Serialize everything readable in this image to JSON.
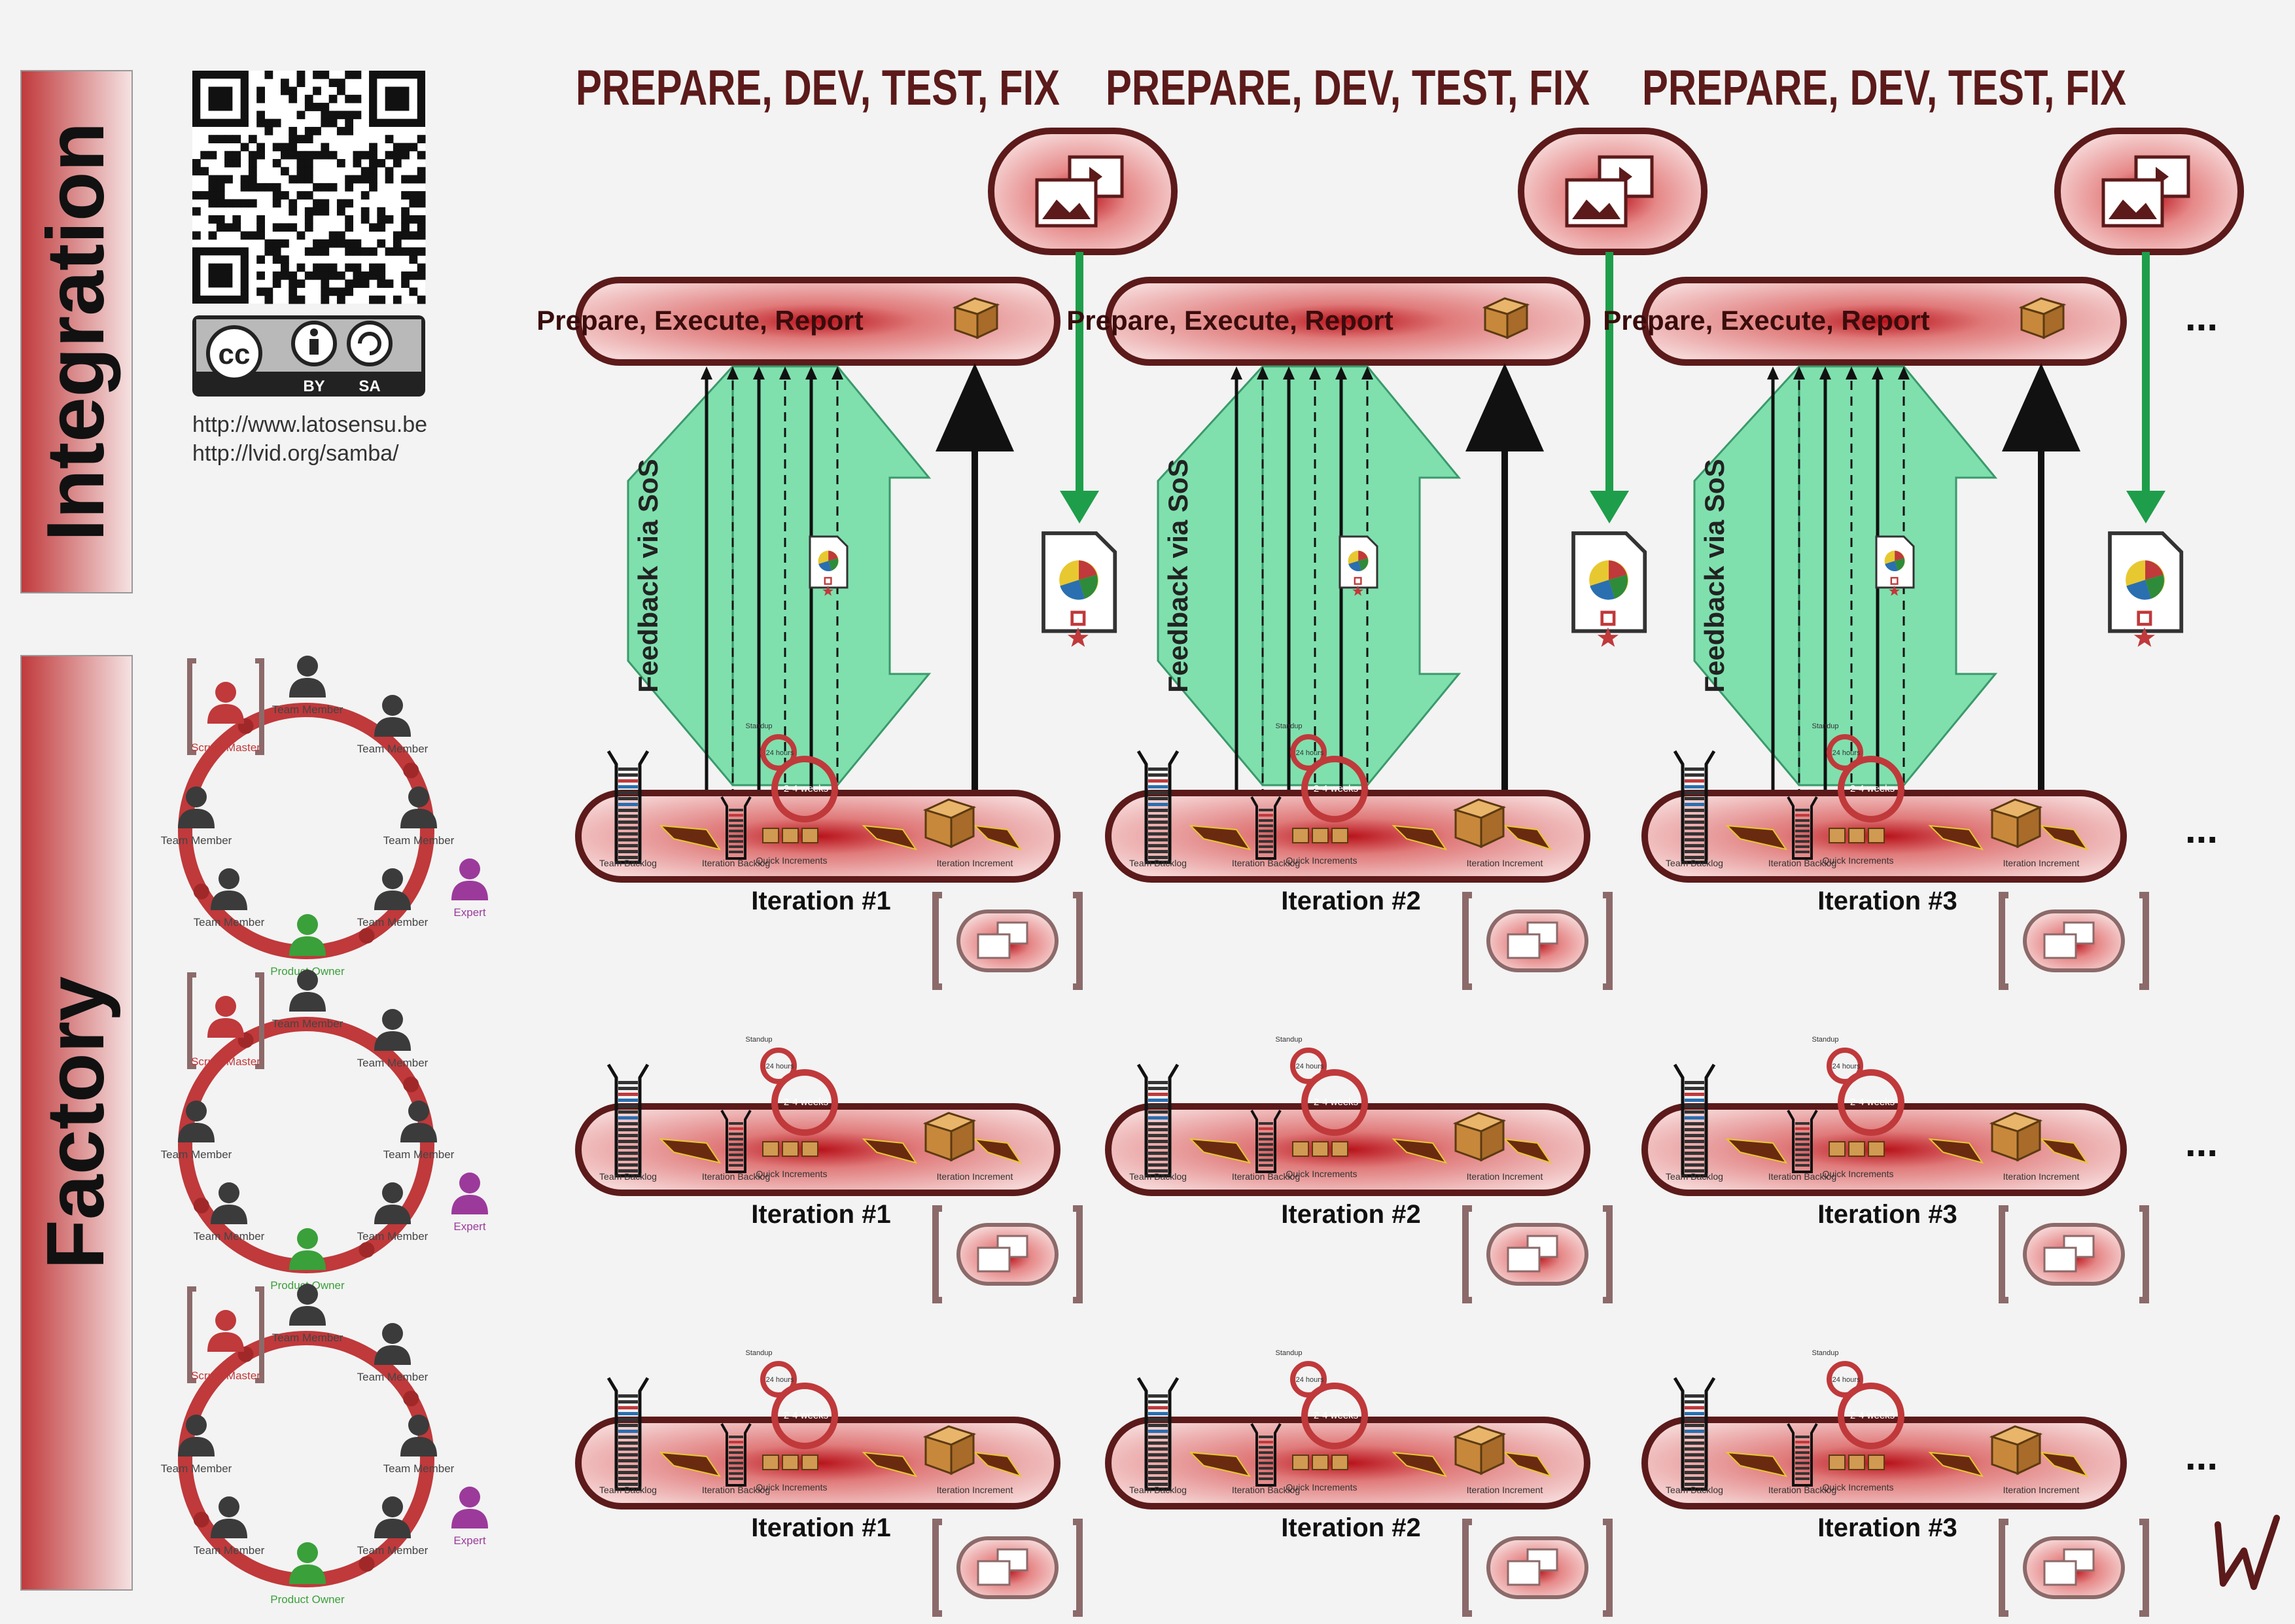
{
  "side_labels": {
    "integration": "Integration",
    "factory": "Factory"
  },
  "license": {
    "badge_cc": "cc",
    "badge_by": "BY",
    "badge_sa": "SA",
    "url1": "http://www.latosensu.be",
    "url2": "http://lvid.org/samba/"
  },
  "integration": {
    "phase_title": "PREPARE, DEV, TEST, FIX",
    "bar_label": "Prepare, Execute, Report",
    "feedback_label": "Feedback via SoS",
    "more": "..."
  },
  "team": {
    "scrum_master": "Scrum Master",
    "team_member": "Team Member",
    "product_owner": "Product Owner",
    "expert": "Expert"
  },
  "iteration": {
    "team_backlog": "Team Backlog",
    "iteration_backlog": "Iteration Backlog",
    "quick_increments": "Quick Increments",
    "iteration_increment": "Iteration Increment",
    "standup": "Standup",
    "hours": "24 hours",
    "weeks": "2-4 weeks",
    "labels": [
      "Iteration #1",
      "Iteration #2",
      "Iteration #3"
    ],
    "more": "..."
  },
  "signature": "lv",
  "colors": {
    "maroon": "#5c1a1a",
    "pill_red": "#c0393b",
    "pill_light": "#f2c6c6",
    "green_arrow": "#1e9e4a",
    "mint": "#7fe0ae",
    "expert_purple": "#9b3a9b",
    "owner_green": "#3aa03a"
  }
}
